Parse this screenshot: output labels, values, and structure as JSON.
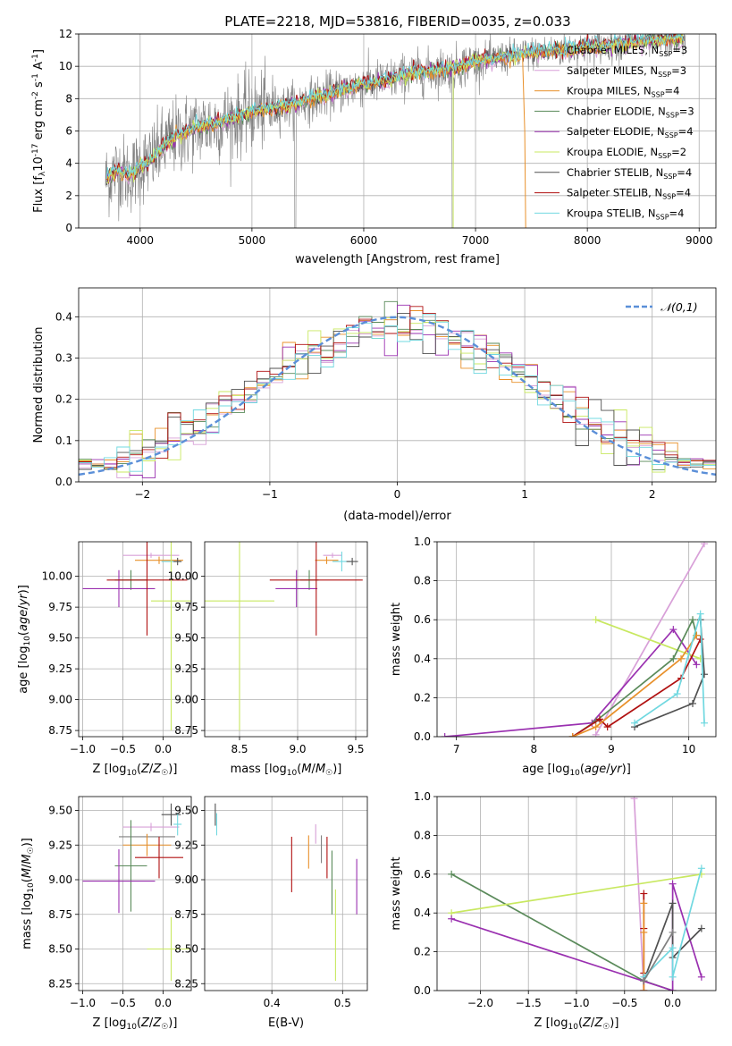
{
  "title": "PLATE=2218, MJD=53816, FIBERID=0035, z=0.033",
  "series_colors": [
    "#808080",
    "#d8a0d8",
    "#e8902a",
    "#5a8a5a",
    "#9a30b0",
    "#c8e860",
    "#505050",
    "#b01010",
    "#70d8e0"
  ],
  "legend_labels": [
    {
      "name": "Chabrier MILES, N",
      "nssp": "=3"
    },
    {
      "name": "Salpeter MILES, N",
      "nssp": "=3"
    },
    {
      "name": "Kroupa MILES, N",
      "nssp": "=4"
    },
    {
      "name": "Chabrier ELODIE, N",
      "nssp": "=3"
    },
    {
      "name": "Salpeter ELODIE, N",
      "nssp": "=4"
    },
    {
      "name": "Kroupa ELODIE, N",
      "nssp": "=2"
    },
    {
      "name": "Chabrier STELIB, N",
      "nssp": "=4"
    },
    {
      "name": "Salpeter STELIB, N",
      "nssp": "=4"
    },
    {
      "name": "Kroupa STELIB, N",
      "nssp": "=4"
    }
  ],
  "ssp_sub": "SSP",
  "chart_data": [
    {
      "type": "line",
      "name": "spectrum",
      "xlabel": "wavelength [Angstrom, rest frame]",
      "ylabel_parts": {
        "a": "Flux [f",
        "b": "λ",
        "c": "10",
        "d": "-17",
        "e": " erg cm",
        "f": "-2",
        "g": " s",
        "h": "-1",
        "i": " A",
        "j": "-1",
        "k": "]"
      },
      "xlim": [
        3450,
        9150
      ],
      "ylim": [
        0,
        12
      ],
      "xticks": [
        4000,
        5000,
        6000,
        7000,
        8000,
        9000
      ],
      "yticks": [
        0,
        2,
        4,
        6,
        8,
        10,
        12
      ],
      "continuum_x": [
        3700,
        3800,
        3900,
        4000,
        4100,
        4200,
        4300,
        4500,
        4700,
        4900,
        5000,
        5200,
        5400,
        5600,
        5800,
        6000,
        6200,
        6400,
        6600,
        6800,
        7000,
        7200,
        7400,
        7600,
        7800,
        8000,
        8200,
        8400,
        8600,
        8800
      ],
      "continuum_y": [
        3.0,
        3.6,
        3.2,
        3.8,
        4.2,
        5.0,
        5.6,
        6.2,
        6.5,
        6.9,
        7.2,
        7.4,
        7.7,
        8.1,
        8.5,
        8.9,
        9.1,
        9.5,
        9.7,
        9.9,
        10.3,
        10.5,
        10.7,
        10.9,
        11.0,
        11.2,
        11.3,
        11.5,
        11.6,
        11.7
      ]
    },
    {
      "type": "histogram",
      "name": "residuals",
      "xlabel": "(data-model)/error",
      "ylabel": "Normed distribution",
      "xlim": [
        -2.5,
        2.5
      ],
      "ylim": [
        0,
        0.47
      ],
      "xticks": [
        -2,
        -1,
        0,
        1,
        2
      ],
      "yticks": [
        0.0,
        0.1,
        0.2,
        0.3,
        0.4
      ],
      "legend": "𝒩(0,1)",
      "bin_width": 0.1
    },
    {
      "type": "scatter",
      "name": "age_vs_Z",
      "xlabel": "Z [log10(Z/Z☉)]",
      "ylabel": "age  [log10(age/yr)]",
      "xlim": [
        -1.05,
        0.35
      ],
      "ylim": [
        8.7,
        10.28
      ],
      "xticks": [
        -1.0,
        -0.5,
        0.0
      ],
      "yticks": [
        8.75,
        9.0,
        9.25,
        9.5,
        9.75,
        10.0
      ],
      "points": [
        {
          "c": 1,
          "x": -0.15,
          "y": 10.17,
          "ex": 0.35,
          "ey": 0.02
        },
        {
          "c": 2,
          "x": -0.05,
          "y": 10.13,
          "ex": 0.3,
          "ey": 0.03
        },
        {
          "c": 8,
          "x": 0.1,
          "y": 10.12,
          "ex": 0.12,
          "ey": 0.08
        },
        {
          "c": 6,
          "x": 0.18,
          "y": 10.12,
          "ex": 0.05,
          "ey": 0.03
        },
        {
          "c": 3,
          "x": -0.4,
          "y": 9.97,
          "ex": 0.2,
          "ey": 0.08
        },
        {
          "c": 4,
          "x": -0.55,
          "y": 9.9,
          "ex": 0.45,
          "ey": 0.15
        },
        {
          "c": 7,
          "x": -0.2,
          "y": 9.97,
          "ex": 0.5,
          "ey": 0.45
        },
        {
          "c": 5,
          "x": 0.1,
          "y": 9.8,
          "ex": 0.25,
          "ey": 1.05
        }
      ]
    },
    {
      "type": "scatter",
      "name": "age_vs_mass",
      "xlabel": "mass [log10(M/M☉)]",
      "ylabel": "",
      "xlim": [
        8.2,
        9.6
      ],
      "ylim": [
        8.7,
        10.28
      ],
      "xticks": [
        8.5,
        9.0,
        9.5
      ],
      "yticks": [
        8.75,
        9.0,
        9.25,
        9.5,
        9.75,
        10.0
      ],
      "points": [
        {
          "c": 1,
          "x": 9.3,
          "y": 10.17,
          "ex": 0.08,
          "ey": 0.02
        },
        {
          "c": 2,
          "x": 9.25,
          "y": 10.13,
          "ex": 0.1,
          "ey": 0.03
        },
        {
          "c": 8,
          "x": 9.38,
          "y": 10.12,
          "ex": 0.08,
          "ey": 0.08
        },
        {
          "c": 6,
          "x": 9.47,
          "y": 10.12,
          "ex": 0.05,
          "ey": 0.03
        },
        {
          "c": 3,
          "x": 9.1,
          "y": 9.97,
          "ex": 0.08,
          "ey": 0.08
        },
        {
          "c": 4,
          "x": 8.99,
          "y": 9.9,
          "ex": 0.18,
          "ey": 0.15
        },
        {
          "c": 7,
          "x": 9.16,
          "y": 9.97,
          "ex": 0.4,
          "ey": 0.45
        },
        {
          "c": 5,
          "x": 8.5,
          "y": 9.8,
          "ex": 0.3,
          "ey": 1.05
        }
      ]
    },
    {
      "type": "line",
      "name": "weight_vs_age",
      "xlabel": "age  [log10(age/yr)]",
      "ylabel": "mass weight",
      "xlim": [
        6.75,
        10.35
      ],
      "ylim": [
        0,
        1
      ],
      "xticks": [
        7,
        8,
        9,
        10
      ],
      "yticks": [
        0.0,
        0.2,
        0.4,
        0.6,
        0.8,
        1.0
      ],
      "series": [
        {
          "c": 1,
          "x": [
            10.2,
            8.8
          ],
          "y": [
            0.99,
            0.01
          ]
        },
        {
          "c": 4,
          "x": [
            6.85,
            8.75,
            9.8,
            10.1
          ],
          "y": [
            0.0,
            0.07,
            0.55,
            0.37
          ]
        },
        {
          "c": 5,
          "x": [
            8.8,
            10.15
          ],
          "y": [
            0.6,
            0.4
          ]
        },
        {
          "c": 3,
          "x": [
            8.5,
            8.8,
            9.8,
            10.05,
            10.1
          ],
          "y": [
            0.0,
            0.08,
            0.4,
            0.6,
            0.52
          ]
        },
        {
          "c": 7,
          "x": [
            8.5,
            8.85,
            8.95,
            9.9,
            10.15
          ],
          "y": [
            0.0,
            0.09,
            0.05,
            0.3,
            0.5
          ]
        },
        {
          "c": 2,
          "x": [
            8.5,
            8.8,
            9.9,
            10.1
          ],
          "y": [
            0.0,
            0.05,
            0.4,
            0.52
          ]
        },
        {
          "c": 6,
          "x": [
            9.3,
            10.05,
            10.2,
            10.15
          ],
          "y": [
            0.05,
            0.17,
            0.32,
            0.6
          ]
        },
        {
          "c": 8,
          "x": [
            9.3,
            9.85,
            10.15,
            10.2
          ],
          "y": [
            0.07,
            0.22,
            0.63,
            0.07
          ]
        }
      ]
    },
    {
      "type": "scatter",
      "name": "mass_vs_Z",
      "xlabel": "Z [log10(Z/Z☉)]",
      "ylabel": "mass [log10(M/M☉)]",
      "xlim": [
        -1.05,
        0.35
      ],
      "ylim": [
        8.2,
        9.6
      ],
      "xticks": [
        -1.0,
        -0.5,
        0.0
      ],
      "yticks": [
        8.25,
        8.5,
        8.75,
        9.0,
        9.25,
        9.5
      ],
      "points": [
        {
          "c": 1,
          "x": -0.15,
          "y": 9.38,
          "ex": 0.35,
          "ey": 0.03
        },
        {
          "c": 6,
          "x": 0.1,
          "y": 9.47,
          "ex": 0.12,
          "ey": 0.08
        },
        {
          "c": 8,
          "x": 0.18,
          "y": 9.4,
          "ex": 0.05,
          "ey": 0.08
        },
        {
          "c": 0,
          "x": -0.2,
          "y": 9.31,
          "ex": 0.35,
          "ey": 0.02
        },
        {
          "c": 2,
          "x": -0.2,
          "y": 9.25,
          "ex": 0.3,
          "ey": 0.08
        },
        {
          "c": 7,
          "x": -0.05,
          "y": 9.16,
          "ex": 0.3,
          "ey": 0.15
        },
        {
          "c": 3,
          "x": -0.4,
          "y": 9.1,
          "ex": 0.2,
          "ey": 0.33
        },
        {
          "c": 4,
          "x": -0.55,
          "y": 8.99,
          "ex": 0.45,
          "ey": 0.23
        },
        {
          "c": 5,
          "x": 0.1,
          "y": 8.5,
          "ex": 0.3,
          "ey": 0.23
        }
      ]
    },
    {
      "type": "scatter",
      "name": "mass_vs_ebv",
      "xlabel": "E(B-V)",
      "ylabel": "",
      "xlim": [
        0.305,
        0.535
      ],
      "ylim": [
        8.2,
        9.6
      ],
      "xticks": [
        0.4,
        0.5
      ],
      "yticks": [
        8.25,
        8.5,
        8.75,
        9.0,
        9.25,
        9.5
      ],
      "points": [
        {
          "c": 6,
          "x": 0.32,
          "y": 9.47,
          "ey": 0.08
        },
        {
          "c": 8,
          "x": 0.322,
          "y": 9.4,
          "ey": 0.08
        },
        {
          "c": 1,
          "x": 0.462,
          "y": 9.33,
          "ey": 0.07
        },
        {
          "c": 7,
          "x": 0.428,
          "y": 9.11,
          "ey": 0.2
        },
        {
          "c": 2,
          "x": 0.452,
          "y": 9.2,
          "ey": 0.12
        },
        {
          "c": 0,
          "x": 0.47,
          "y": 9.22,
          "ey": 0.1
        },
        {
          "c": 7,
          "x": 0.478,
          "y": 9.16,
          "ey": 0.15
        },
        {
          "c": 3,
          "x": 0.485,
          "y": 8.98,
          "ey": 0.23
        },
        {
          "c": 4,
          "x": 0.52,
          "y": 8.95,
          "ey": 0.2
        },
        {
          "c": 5,
          "x": 0.49,
          "y": 8.6,
          "ey": 0.33
        }
      ]
    },
    {
      "type": "line",
      "name": "weight_vs_Z",
      "xlabel": "Z [log10(Z/Z☉)]",
      "ylabel": "mass weight",
      "xlim": [
        -2.45,
        0.45
      ],
      "ylim": [
        0,
        1
      ],
      "xticks": [
        -2.0,
        -1.5,
        -1.0,
        -0.5,
        0.0
      ],
      "yticks": [
        0.0,
        0.2,
        0.4,
        0.6,
        0.8,
        1.0
      ],
      "series": [
        {
          "c": 1,
          "x": [
            -0.4,
            -0.3
          ],
          "y": [
            0.99,
            0.0
          ]
        },
        {
          "c": 3,
          "x": [
            -2.3,
            -0.3,
            0.0
          ],
          "y": [
            0.6,
            0.05,
            0.0
          ]
        },
        {
          "c": 5,
          "x": [
            -2.3,
            0.3
          ],
          "y": [
            0.4,
            0.6
          ]
        },
        {
          "c": 4,
          "x": [
            -2.3,
            0.0,
            0.0,
            0.3
          ],
          "y": [
            0.37,
            0.0,
            0.55,
            0.07
          ]
        },
        {
          "c": 7,
          "x": [
            -0.3,
            -0.3,
            -0.3,
            -0.3
          ],
          "y": [
            0.0,
            0.5,
            0.32,
            0.09
          ]
        },
        {
          "c": 2,
          "x": [
            -0.3,
            -0.3,
            -0.3
          ],
          "y": [
            0.0,
            0.45,
            0.3
          ]
        },
        {
          "c": 6,
          "x": [
            -0.3,
            0.0,
            0.0,
            0.3
          ],
          "y": [
            0.05,
            0.45,
            0.17,
            0.32
          ]
        },
        {
          "c": 8,
          "x": [
            -0.3,
            0.0,
            0.0,
            0.3
          ],
          "y": [
            0.07,
            0.22,
            0.07,
            0.63
          ]
        },
        {
          "c": 0,
          "x": [
            -0.3,
            0.0
          ],
          "y": [
            0.05,
            0.3
          ]
        }
      ]
    }
  ]
}
